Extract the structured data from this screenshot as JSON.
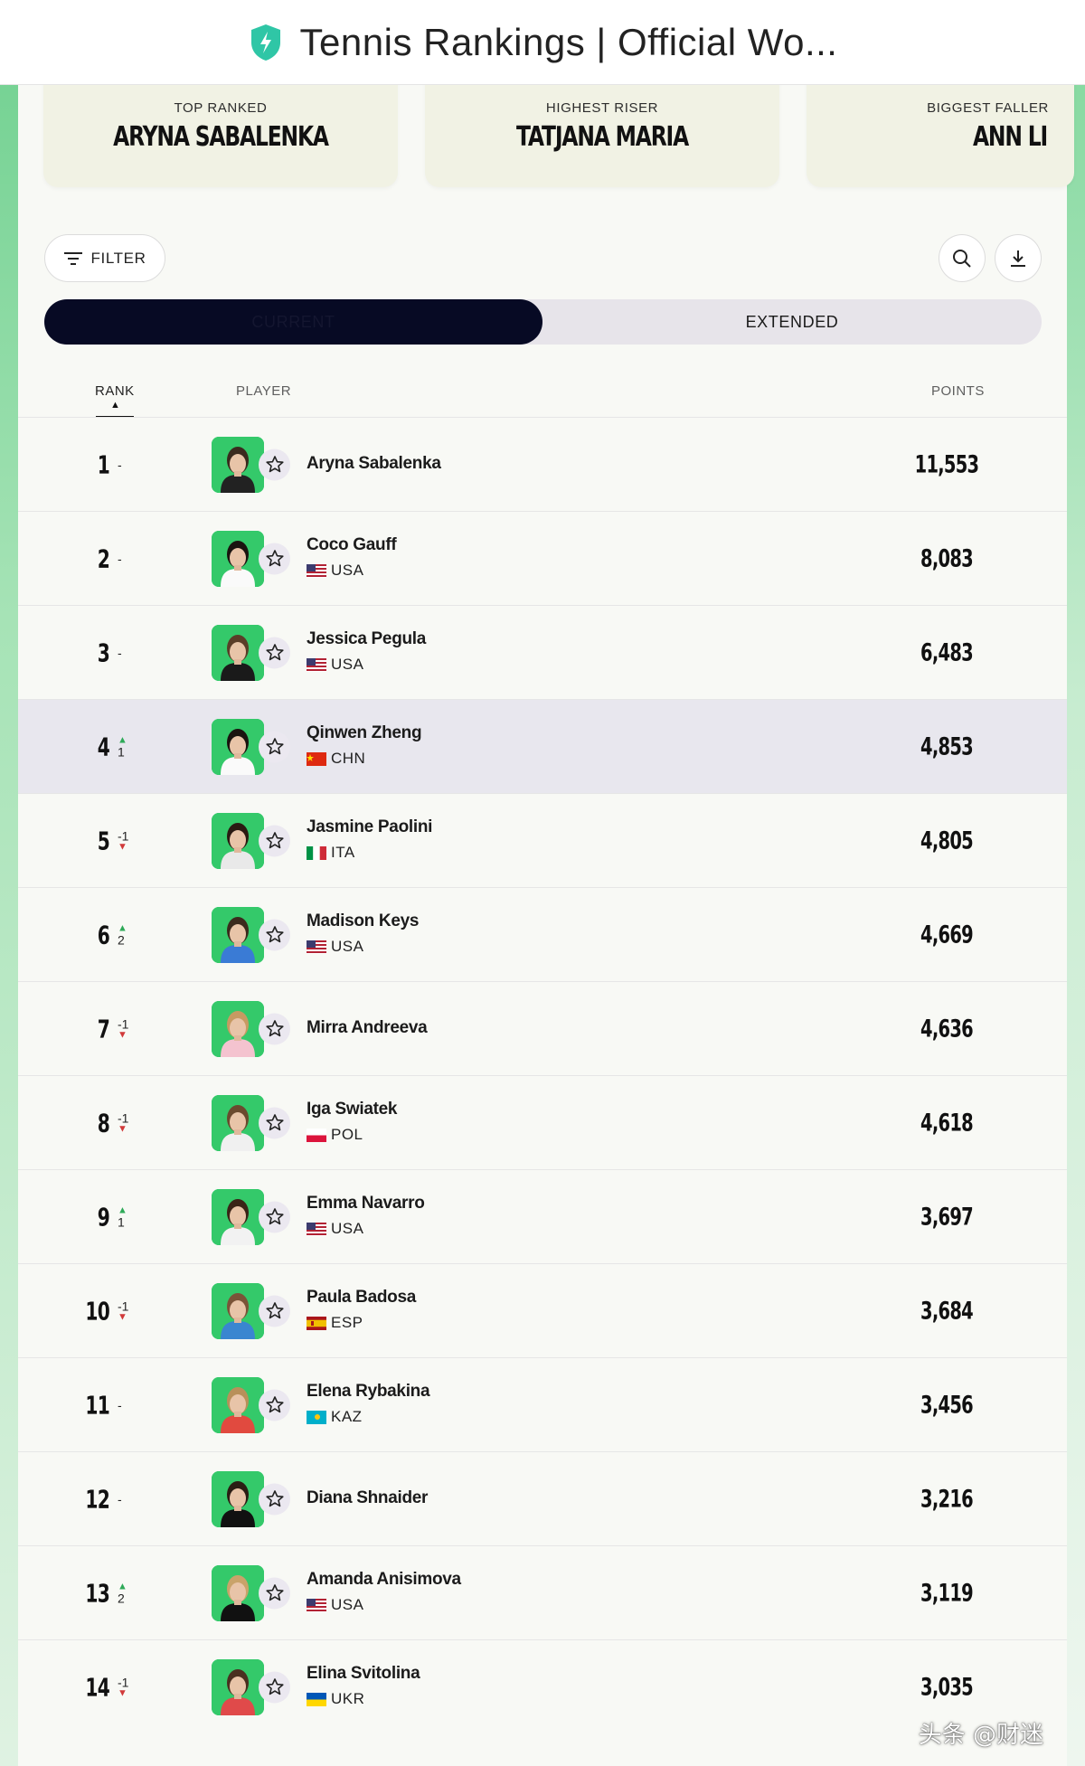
{
  "window": {
    "title": "Tennis Rankings | Official Wo..."
  },
  "highlights": [
    {
      "label": "TOP RANKED",
      "value": "ARYNA SABALENKA"
    },
    {
      "label": "HIGHEST RISER",
      "value": "TATJANA MARIA"
    },
    {
      "label": "BIGGEST FALLER",
      "value": "ANN LI"
    }
  ],
  "toolbar": {
    "filter_label": "FILTER",
    "search_icon": "search-icon",
    "download_icon": "download-icon"
  },
  "view_toggle": {
    "active_label": "CURRENT",
    "other_label": "EXTENDED",
    "active": "CURRENT"
  },
  "table": {
    "headers": {
      "rank": "RANK",
      "player": "PLAYER",
      "points": "POINTS"
    },
    "sort": {
      "column": "RANK",
      "direction": "ascending"
    },
    "rows": [
      {
        "rank": "1",
        "move": "-",
        "dir": "none",
        "name": "Aryna Sabalenka",
        "country": "",
        "points": "11,553"
      },
      {
        "rank": "2",
        "move": "-",
        "dir": "none",
        "name": "Coco Gauff",
        "country": "USA",
        "points": "8,083"
      },
      {
        "rank": "3",
        "move": "-",
        "dir": "none",
        "name": "Jessica Pegula",
        "country": "USA",
        "points": "6,483"
      },
      {
        "rank": "4",
        "move": "1",
        "dir": "up",
        "name": "Qinwen Zheng",
        "country": "CHN",
        "points": "4,853",
        "highlighted": true
      },
      {
        "rank": "5",
        "move": "-1",
        "dir": "down",
        "name": "Jasmine Paolini",
        "country": "ITA",
        "points": "4,805"
      },
      {
        "rank": "6",
        "move": "2",
        "dir": "up",
        "name": "Madison Keys",
        "country": "USA",
        "points": "4,669"
      },
      {
        "rank": "7",
        "move": "-1",
        "dir": "down",
        "name": "Mirra Andreeva",
        "country": "",
        "points": "4,636"
      },
      {
        "rank": "8",
        "move": "-1",
        "dir": "down",
        "name": "Iga Swiatek",
        "country": "POL",
        "points": "4,618"
      },
      {
        "rank": "9",
        "move": "1",
        "dir": "up",
        "name": "Emma Navarro",
        "country": "USA",
        "points": "3,697"
      },
      {
        "rank": "10",
        "move": "-1",
        "dir": "down",
        "name": "Paula Badosa",
        "country": "ESP",
        "points": "3,684"
      },
      {
        "rank": "11",
        "move": "-",
        "dir": "none",
        "name": "Elena Rybakina",
        "country": "KAZ",
        "points": "3,456"
      },
      {
        "rank": "12",
        "move": "-",
        "dir": "none",
        "name": "Diana Shnaider",
        "country": "",
        "points": "3,216"
      },
      {
        "rank": "13",
        "move": "2",
        "dir": "up",
        "name": "Amanda Anisimova",
        "country": "USA",
        "points": "3,119"
      },
      {
        "rank": "14",
        "move": "-1",
        "dir": "down",
        "name": "Elina Svitolina",
        "country": "UKR",
        "points": "3,035"
      }
    ]
  },
  "colors": {
    "accent_dark": "#070a24",
    "avatar_bg": "#34c96a",
    "up": "#2eaa58",
    "down": "#d13a3a",
    "highlight_row": "#e8e7ee"
  },
  "watermark": "头条 @财迷"
}
